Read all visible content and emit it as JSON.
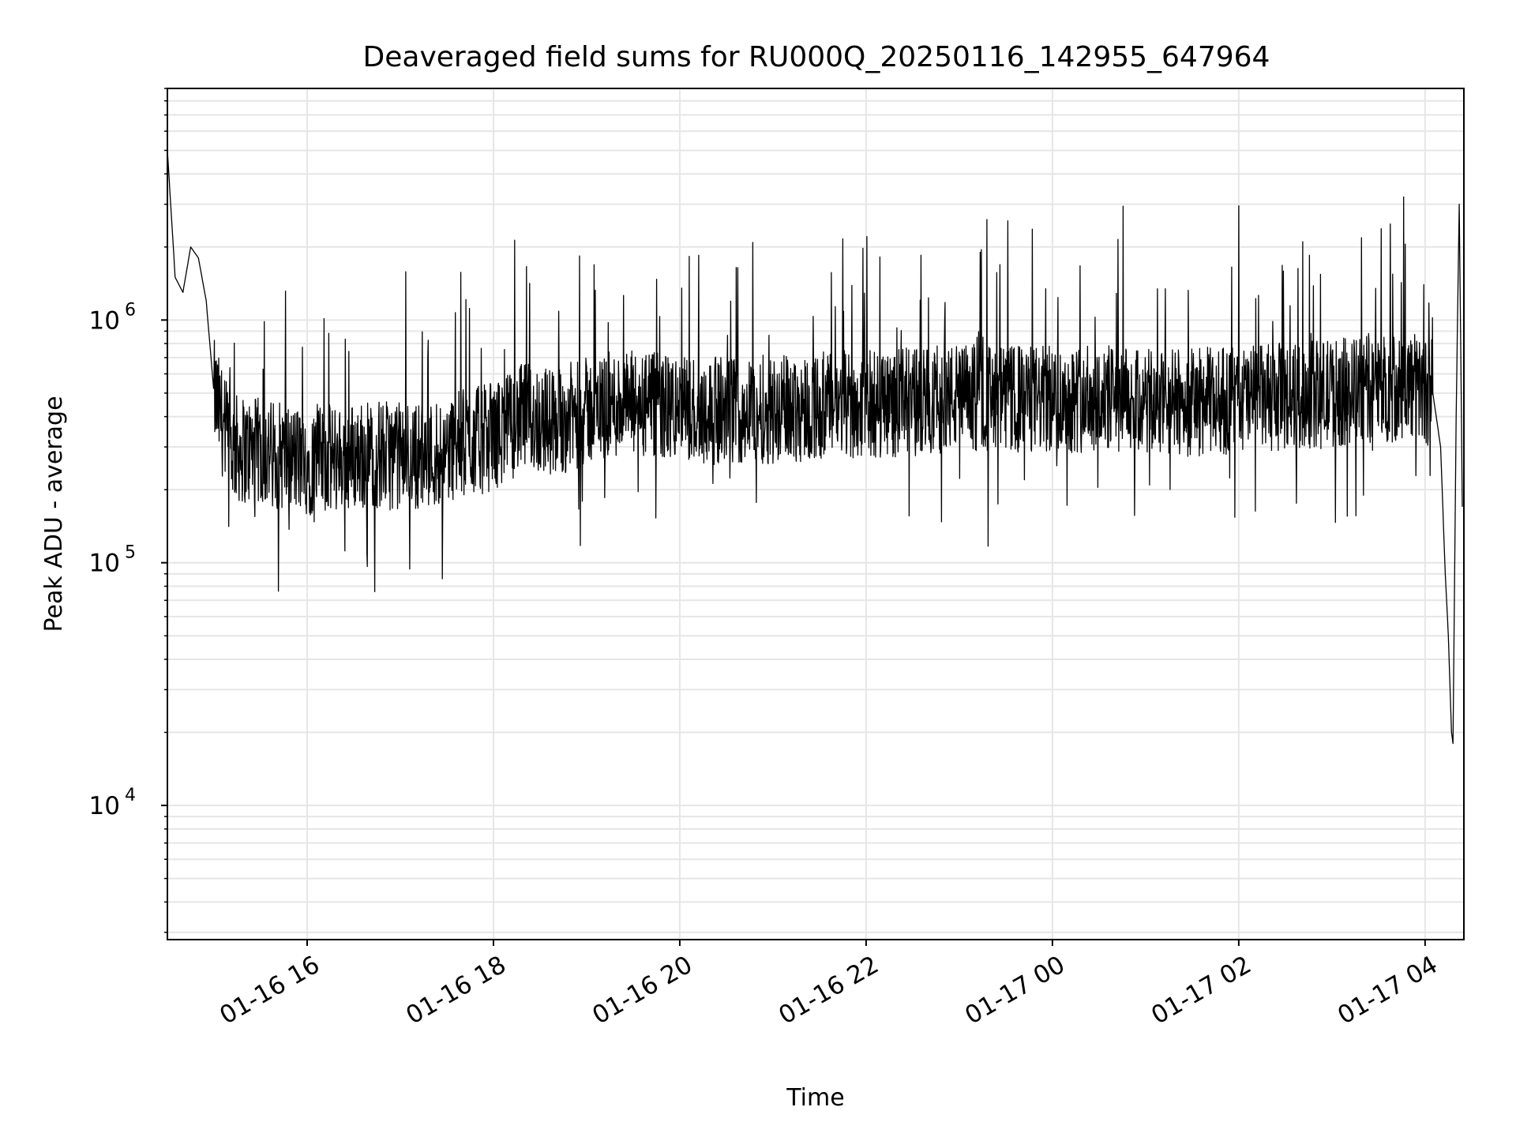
{
  "chart_data": {
    "type": "line",
    "title": "Deaveraged field sums for RU000Q_20250116_142955_647964",
    "xlabel": "Time",
    "ylabel": "Peak ADU - average",
    "yscale": "log",
    "ylim": [
      2800,
      9000000
    ],
    "xlim": [
      "2025-01-16 14:30",
      "2025-01-17 04:25"
    ],
    "grid": true,
    "legend": "none",
    "line_color": "#000000",
    "grid_color": "#e6e6e6",
    "x_ticks": [
      {
        "value": "2025-01-16 16:00",
        "label": "01-16 16"
      },
      {
        "value": "2025-01-16 18:00",
        "label": "01-16 18"
      },
      {
        "value": "2025-01-16 20:00",
        "label": "01-16 20"
      },
      {
        "value": "2025-01-16 22:00",
        "label": "01-16 22"
      },
      {
        "value": "2025-01-17 00:00",
        "label": "01-17 00"
      },
      {
        "value": "2025-01-17 02:00",
        "label": "01-17 02"
      },
      {
        "value": "2025-01-17 04:00",
        "label": "01-17 04"
      }
    ],
    "y_ticks": [
      {
        "value": 10000,
        "base": "10",
        "exp": "4"
      },
      {
        "value": 100000,
        "base": "10",
        "exp": "5"
      },
      {
        "value": 1000000,
        "base": "10",
        "exp": "6"
      }
    ],
    "series": [
      {
        "x": [
          "2025-01-16 14:30",
          "2025-01-16 14:35",
          "2025-01-16 14:40",
          "2025-01-16 14:45",
          "2025-01-16 14:50",
          "2025-01-16 14:55",
          "2025-01-16 15:00",
          "2025-01-16 15:10",
          "2025-01-16 15:20",
          "2025-01-16 15:40",
          "2025-01-16 16:00",
          "2025-01-16 16:20",
          "2025-01-16 16:40",
          "2025-01-16 17:00",
          "2025-01-16 17:20",
          "2025-01-16 17:40",
          "2025-01-16 18:00",
          "2025-01-16 18:20",
          "2025-01-16 18:40",
          "2025-01-16 19:00",
          "2025-01-16 19:20",
          "2025-01-16 19:40",
          "2025-01-16 20:00",
          "2025-01-16 20:30",
          "2025-01-16 21:00",
          "2025-01-16 21:30",
          "2025-01-16 22:00",
          "2025-01-16 22:30",
          "2025-01-16 23:00",
          "2025-01-16 23:30",
          "2025-01-17 00:00",
          "2025-01-17 00:30",
          "2025-01-17 01:00",
          "2025-01-17 01:30",
          "2025-01-17 02:00",
          "2025-01-17 02:30",
          "2025-01-17 03:00",
          "2025-01-17 03:30",
          "2025-01-17 03:50",
          "2025-01-17 04:05",
          "2025-01-17 04:10",
          "2025-01-17 04:13",
          "2025-01-17 04:15",
          "2025-01-17 04:17",
          "2025-01-17 04:18",
          "2025-01-17 04:20",
          "2025-01-17 04:22",
          "2025-01-17 04:24"
        ],
        "y": [
          5000000,
          1500000,
          1300000,
          2000000,
          1800000,
          1200000,
          500000,
          300000,
          290000,
          280000,
          260000,
          270000,
          280000,
          275000,
          280000,
          310000,
          330000,
          400000,
          380000,
          420000,
          450000,
          440000,
          430000,
          420000,
          430000,
          440000,
          450000,
          460000,
          480000,
          470000,
          470000,
          480000,
          450000,
          460000,
          470000,
          480000,
          500000,
          520000,
          540000,
          500000,
          300000,
          90000,
          50000,
          20000,
          18000,
          400000,
          3000000,
          170000
        ]
      }
    ]
  }
}
